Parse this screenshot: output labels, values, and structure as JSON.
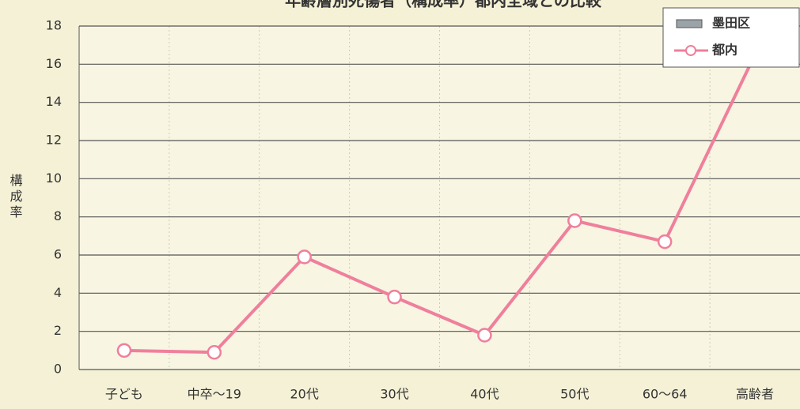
{
  "chart_data": {
    "type": "line",
    "title": "年齢層別死傷者（構成率）都内全域との比較",
    "y_label": "構成率",
    "categories": [
      "子ども",
      "中卒～19",
      "20代",
      "30代",
      "40代",
      "50代",
      "60～64",
      "高齢者"
    ],
    "series": [
      {
        "name": "墨田区",
        "type": "bar",
        "color": "#9aa3a8",
        "values": [
          null,
          null,
          null,
          null,
          null,
          null,
          null,
          null
        ]
      },
      {
        "name": "都内",
        "type": "line",
        "color": "#ef7f9c",
        "values": [
          1.0,
          0.9,
          5.9,
          3.8,
          1.8,
          7.8,
          6.7,
          16.5
        ]
      }
    ],
    "ylim": [
      0,
      18
    ],
    "yticks": [
      0,
      2,
      4,
      6,
      8,
      10,
      12,
      14,
      16,
      18
    ],
    "grid": true,
    "legend": "top-right"
  }
}
